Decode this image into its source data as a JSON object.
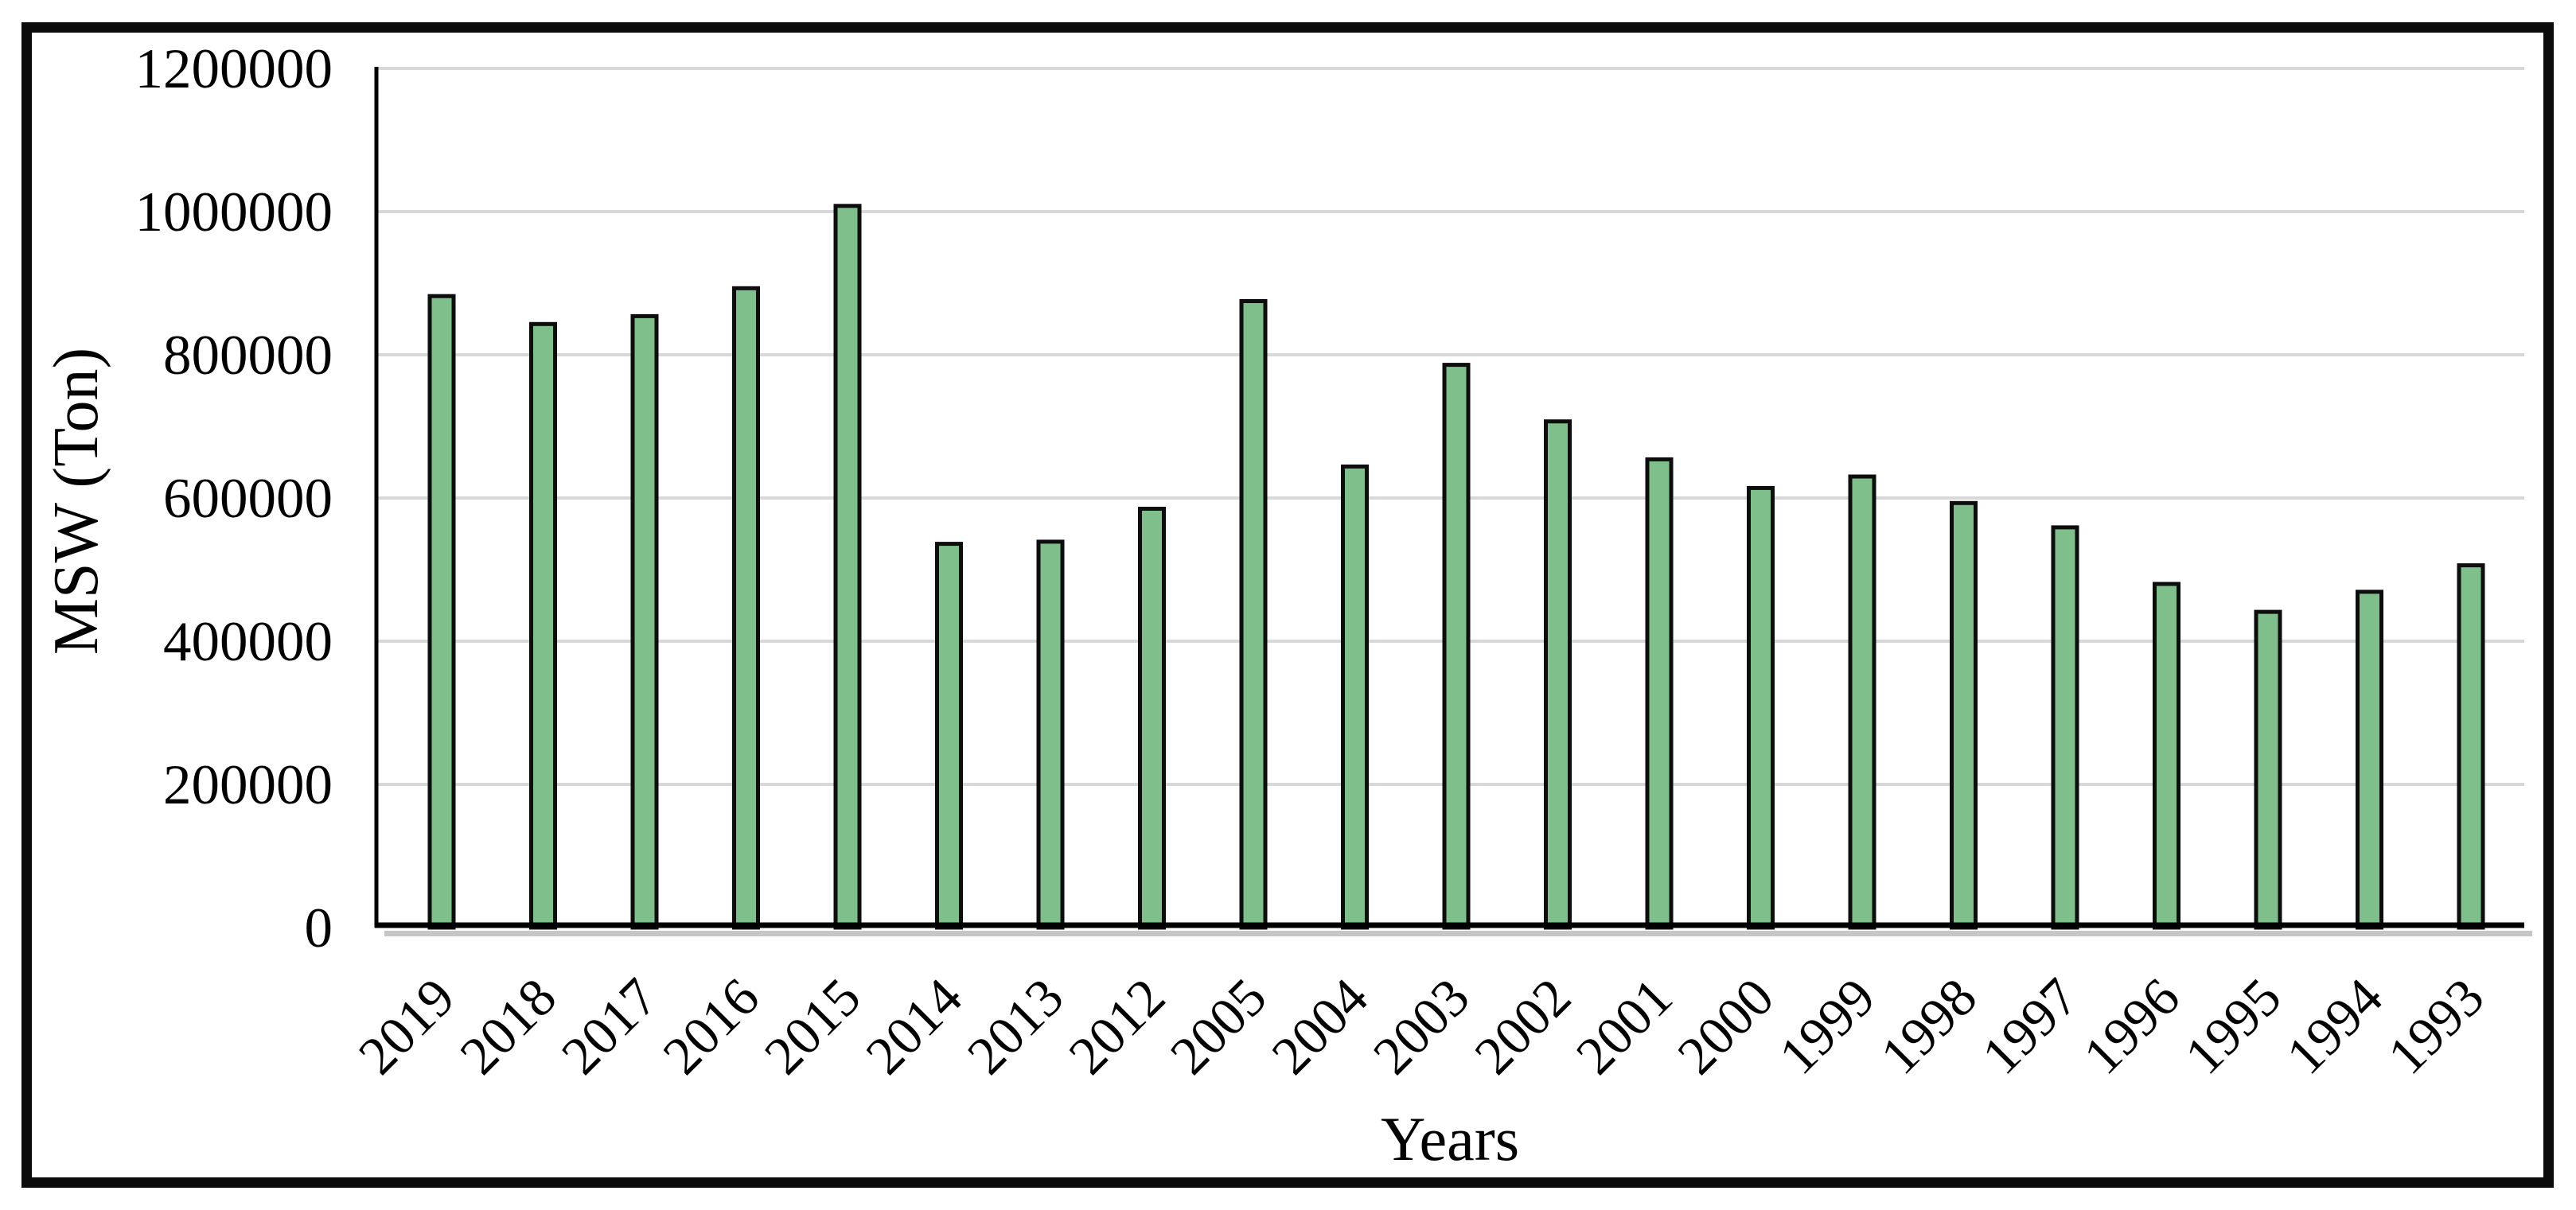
{
  "figure": {
    "kind": "embedded chart image with black frame"
  },
  "chart_data": {
    "type": "bar",
    "title": "",
    "xlabel": "Years",
    "ylabel": "MSW (Ton)",
    "categories": [
      "2019",
      "2018",
      "2017",
      "2016",
      "2015",
      "2014",
      "2013",
      "2012",
      "2005",
      "2004",
      "2003",
      "2002",
      "2001",
      "2000",
      "1999",
      "1998",
      "1997",
      "1996",
      "1995",
      "1994",
      "1993"
    ],
    "values": [
      882000,
      843000,
      854000,
      893000,
      1008000,
      536000,
      539000,
      585000,
      875000,
      644000,
      786000,
      707000,
      654000,
      614000,
      630000,
      593000,
      559000,
      480000,
      441000,
      469000,
      506000
    ],
    "ylim": [
      0,
      1200000
    ],
    "y_ticks": [
      0,
      200000,
      400000,
      600000,
      800000,
      1000000,
      1200000
    ],
    "y_tick_labels": [
      "0",
      "200000",
      "400000",
      "600000",
      "800000",
      "1000000",
      "1200000"
    ],
    "grid": true,
    "legend": false,
    "bar_fill": "#7EBF8C",
    "bar_border": "#0d0d0d",
    "gridline_color": "#d8d8d8",
    "axis_color": "#000000",
    "axis_shadow_color": "#c6c6c6",
    "frame_color": "#0b0b0b",
    "text_color": "#000000"
  }
}
